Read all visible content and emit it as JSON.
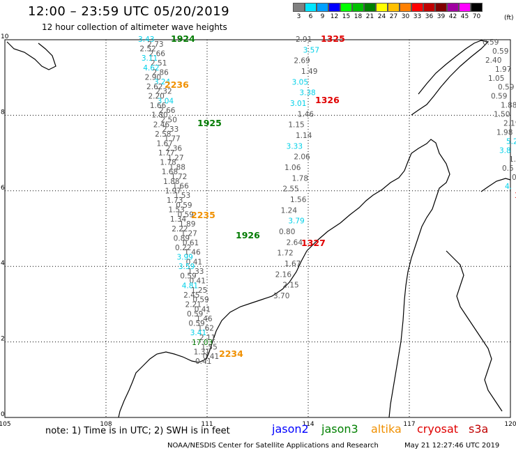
{
  "title": "12:00 – 23:59 UTC 05/20/2019",
  "subtitle": "12 hour collection of altimeter wave heights",
  "legend": {
    "unit": "(ft)",
    "bins": [
      {
        "label": "3",
        "color": "#808080"
      },
      {
        "label": "6",
        "color": "#00e5ff"
      },
      {
        "label": "9",
        "color": "#00a0ff"
      },
      {
        "label": "12",
        "color": "#0000ff"
      },
      {
        "label": "15",
        "color": "#00ff00"
      },
      {
        "label": "18",
        "color": "#00c000"
      },
      {
        "label": "21",
        "color": "#008000"
      },
      {
        "label": "24",
        "color": "#ffff00"
      },
      {
        "label": "27",
        "color": "#ffc000"
      },
      {
        "label": "30",
        "color": "#ff8000"
      },
      {
        "label": "33",
        "color": "#ff0000"
      },
      {
        "label": "36",
        "color": "#c00000"
      },
      {
        "label": "39",
        "color": "#800000"
      },
      {
        "label": "42",
        "color": "#a000a0"
      },
      {
        "label": "45",
        "color": "#ff00ff"
      },
      {
        "label": "70",
        "color": "#000000"
      }
    ]
  },
  "axes": {
    "lon_ticks": [
      "105",
      "108",
      "111",
      "114",
      "117",
      "120"
    ],
    "lat_ticks": [
      "10",
      "8",
      "6",
      "4",
      "2",
      "0"
    ],
    "lon_range": [
      105,
      120
    ],
    "lat_range": [
      0,
      10
    ]
  },
  "colors": {
    "gray": "#555555",
    "cyan": "#00d0e8",
    "green": "#007a00",
    "orange": "#f09000",
    "red": "#e00000",
    "blue": "#0000ff"
  },
  "passes": [
    {
      "label": "1924",
      "color": "green"
    },
    {
      "label": "1925",
      "color": "green"
    },
    {
      "label": "1926",
      "color": "green"
    },
    {
      "label": "2236",
      "color": "orange"
    },
    {
      "label": "2235",
      "color": "orange"
    },
    {
      "label": "2234",
      "color": "orange"
    },
    {
      "label": "1325",
      "color": "red"
    },
    {
      "label": "1326",
      "color": "red"
    },
    {
      "label": "1327",
      "color": "red"
    }
  ],
  "track_a": {
    "values": [
      "3.43",
      "2.73",
      "2.52",
      "2.66",
      "3.11",
      "2.51",
      "4.62",
      "2.86",
      "2.90",
      "3.24",
      "2.62",
      "2.32",
      "2.20",
      "3.04",
      "1.66",
      "2.66",
      "1.80",
      "2.50",
      "2.46",
      "2.33",
      "2.58",
      "1.77",
      "1.67",
      "2.36",
      "1.77",
      "1.27",
      "1.78",
      "1.88",
      "1.68",
      "1.72",
      "1.88",
      "1.66",
      "1.97",
      "1.53",
      "1.73",
      "0.59",
      "1.53",
      "0.59",
      "1.34",
      "1.89",
      "2.22",
      "1.27",
      "0.89",
      "0.61",
      "0.22",
      "1.46",
      "3.99",
      "0.41",
      "3.59",
      "1.33",
      "0.59",
      "0.41",
      "4.81",
      "1.25",
      "2.45",
      "0.59",
      "2.21",
      "0.41",
      "0.59",
      "1.46",
      "0.59",
      "1.62",
      "3.41",
      "2.11",
      "17.03",
      "1.55",
      "1.31",
      "0.41",
      "0.41"
    ],
    "colors": [
      "cyan",
      "gray",
      "gray",
      "gray",
      "cyan",
      "gray",
      "cyan",
      "gray",
      "gray",
      "cyan",
      "gray",
      "gray",
      "gray",
      "cyan",
      "gray",
      "gray",
      "gray",
      "gray",
      "gray",
      "gray",
      "gray",
      "gray",
      "gray",
      "gray",
      "gray",
      "gray",
      "gray",
      "gray",
      "gray",
      "gray",
      "gray",
      "gray",
      "gray",
      "gray",
      "gray",
      "gray",
      "gray",
      "gray",
      "gray",
      "gray",
      "gray",
      "gray",
      "gray",
      "gray",
      "gray",
      "gray",
      "cyan",
      "gray",
      "cyan",
      "gray",
      "gray",
      "gray",
      "cyan",
      "gray",
      "gray",
      "gray",
      "gray",
      "gray",
      "gray",
      "gray",
      "gray",
      "gray",
      "cyan",
      "gray",
      "green",
      "gray",
      "gray",
      "gray",
      "gray"
    ]
  },
  "track_b": {
    "values": [
      "2.91",
      "3.57",
      "2.69",
      "1.49",
      "3.05",
      "3.38",
      "3.01",
      "1.46",
      "1.15",
      "1.14",
      "3.33",
      "2.06",
      "1.06",
      "1.78",
      "2.55",
      "1.56",
      "1.24",
      "3.79",
      "0.80",
      "2.64",
      "1.72",
      "1.67",
      "2.16",
      "2.15",
      "3.70"
    ],
    "colors": [
      "gray",
      "cyan",
      "gray",
      "gray",
      "cyan",
      "cyan",
      "cyan",
      "gray",
      "gray",
      "gray",
      "cyan",
      "gray",
      "gray",
      "gray",
      "gray",
      "gray",
      "gray",
      "cyan",
      "gray",
      "gray",
      "gray",
      "gray",
      "gray",
      "gray",
      "gray"
    ]
  },
  "track_c": {
    "values": [
      "0.59",
      "0.59",
      "2.40",
      "1.97",
      "1.05",
      "0.59",
      "0.59",
      "1.88",
      "1.50",
      "2.19",
      "1.98",
      "5.22",
      "3.8",
      "1.8",
      "0.5",
      "0.5",
      "4.",
      "3."
    ],
    "colors": [
      "gray",
      "gray",
      "gray",
      "gray",
      "gray",
      "gray",
      "gray",
      "gray",
      "gray",
      "gray",
      "gray",
      "cyan",
      "cyan",
      "gray",
      "gray",
      "gray",
      "cyan",
      "red"
    ]
  },
  "footer": {
    "note": "note:  1) Time is in UTC; 2) SWH is in feet",
    "satellites": [
      {
        "name": "jason2",
        "color": "#0000ff"
      },
      {
        "name": "jason3",
        "color": "#008000"
      },
      {
        "name": "altika",
        "color": "#f09000"
      },
      {
        "name": "cryosat",
        "color": "#e00000"
      },
      {
        "name": "s3a",
        "color": "#c00000"
      }
    ],
    "credit": "NOAA/NESDIS Center for Satellite Applications and Research",
    "timestamp": "May 21 12:27:46 UTC 2019"
  }
}
